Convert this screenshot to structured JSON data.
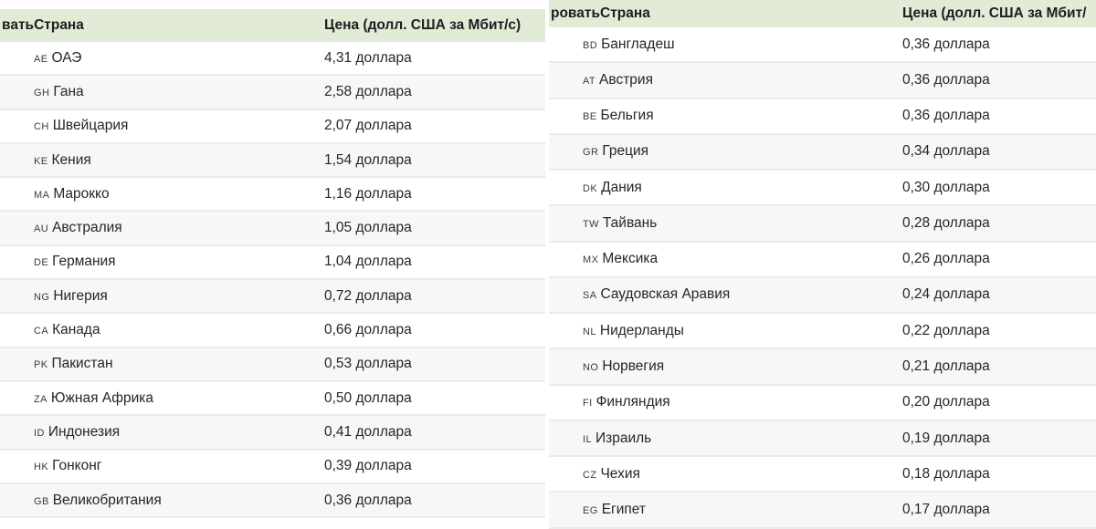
{
  "colors": {
    "header_bg": "#e2ebd6",
    "row_bg": "#ffffff",
    "row_alt_bg": "#f7f7f7",
    "separator": "#ebebeb",
    "text": "#262626",
    "header_text": "#1c1e21"
  },
  "tables": [
    {
      "header": {
        "country_label": "ватьСтрана",
        "price_label": "Цена (долл. США за Мбит/с)"
      },
      "rows": [
        {
          "code": "AE",
          "country": "ОАЭ",
          "price": "4,31 доллара"
        },
        {
          "code": "GH",
          "country": "Гана",
          "price": "2,58 доллара"
        },
        {
          "code": "CH",
          "country": "Швейцария",
          "price": "2,07 доллара"
        },
        {
          "code": "KE",
          "country": "Кения",
          "price": "1,54 доллара"
        },
        {
          "code": "MA",
          "country": "Марокко",
          "price": "1,16 доллара"
        },
        {
          "code": "AU",
          "country": "Австралия",
          "price": "1,05 доллара"
        },
        {
          "code": "DE",
          "country": "Германия",
          "price": "1,04 доллара"
        },
        {
          "code": "NG",
          "country": "Нигерия",
          "price": "0,72 доллара"
        },
        {
          "code": "CA",
          "country": "Канада",
          "price": "0,66 доллара"
        },
        {
          "code": "PK",
          "country": "Пакистан",
          "price": "0,53 доллара"
        },
        {
          "code": "ZA",
          "country": "Южная Африка",
          "price": "0,50 доллара"
        },
        {
          "code": "ID",
          "country": "Индонезия",
          "price": "0,41 доллара"
        },
        {
          "code": "HK",
          "country": "Гонконг",
          "price": "0,39 доллара"
        },
        {
          "code": "GB",
          "country": "Великобритания",
          "price": "0,36 доллара"
        }
      ]
    },
    {
      "header": {
        "country_label": "роватьСтрана",
        "price_label": "Цена (долл. США за Мбит/"
      },
      "rows": [
        {
          "code": "BD",
          "country": "Бангладеш",
          "price": "0,36 доллара"
        },
        {
          "code": "AT",
          "country": "Австрия",
          "price": "0,36 доллара"
        },
        {
          "code": "BE",
          "country": "Бельгия",
          "price": "0,36 доллара"
        },
        {
          "code": "GR",
          "country": "Греция",
          "price": "0,34 доллара"
        },
        {
          "code": "DK",
          "country": "Дания",
          "price": "0,30 доллара"
        },
        {
          "code": "TW",
          "country": "Тайвань",
          "price": "0,28 доллара"
        },
        {
          "code": "MX",
          "country": "Мексика",
          "price": "0,26 доллара"
        },
        {
          "code": "SA",
          "country": "Саудовская Аравия",
          "price": "0,24 доллара"
        },
        {
          "code": "NL",
          "country": "Нидерланды",
          "price": "0,22 доллара"
        },
        {
          "code": "NO",
          "country": "Норвегия",
          "price": "0,21 доллара"
        },
        {
          "code": "FI",
          "country": "Финляндия",
          "price": "0,20 доллара"
        },
        {
          "code": "IL",
          "country": "Израиль",
          "price": "0,19 доллара"
        },
        {
          "code": "CZ",
          "country": "Чехия",
          "price": "0,18 доллара"
        },
        {
          "code": "EG",
          "country": "Египет",
          "price": "0,17 доллара"
        }
      ]
    }
  ]
}
